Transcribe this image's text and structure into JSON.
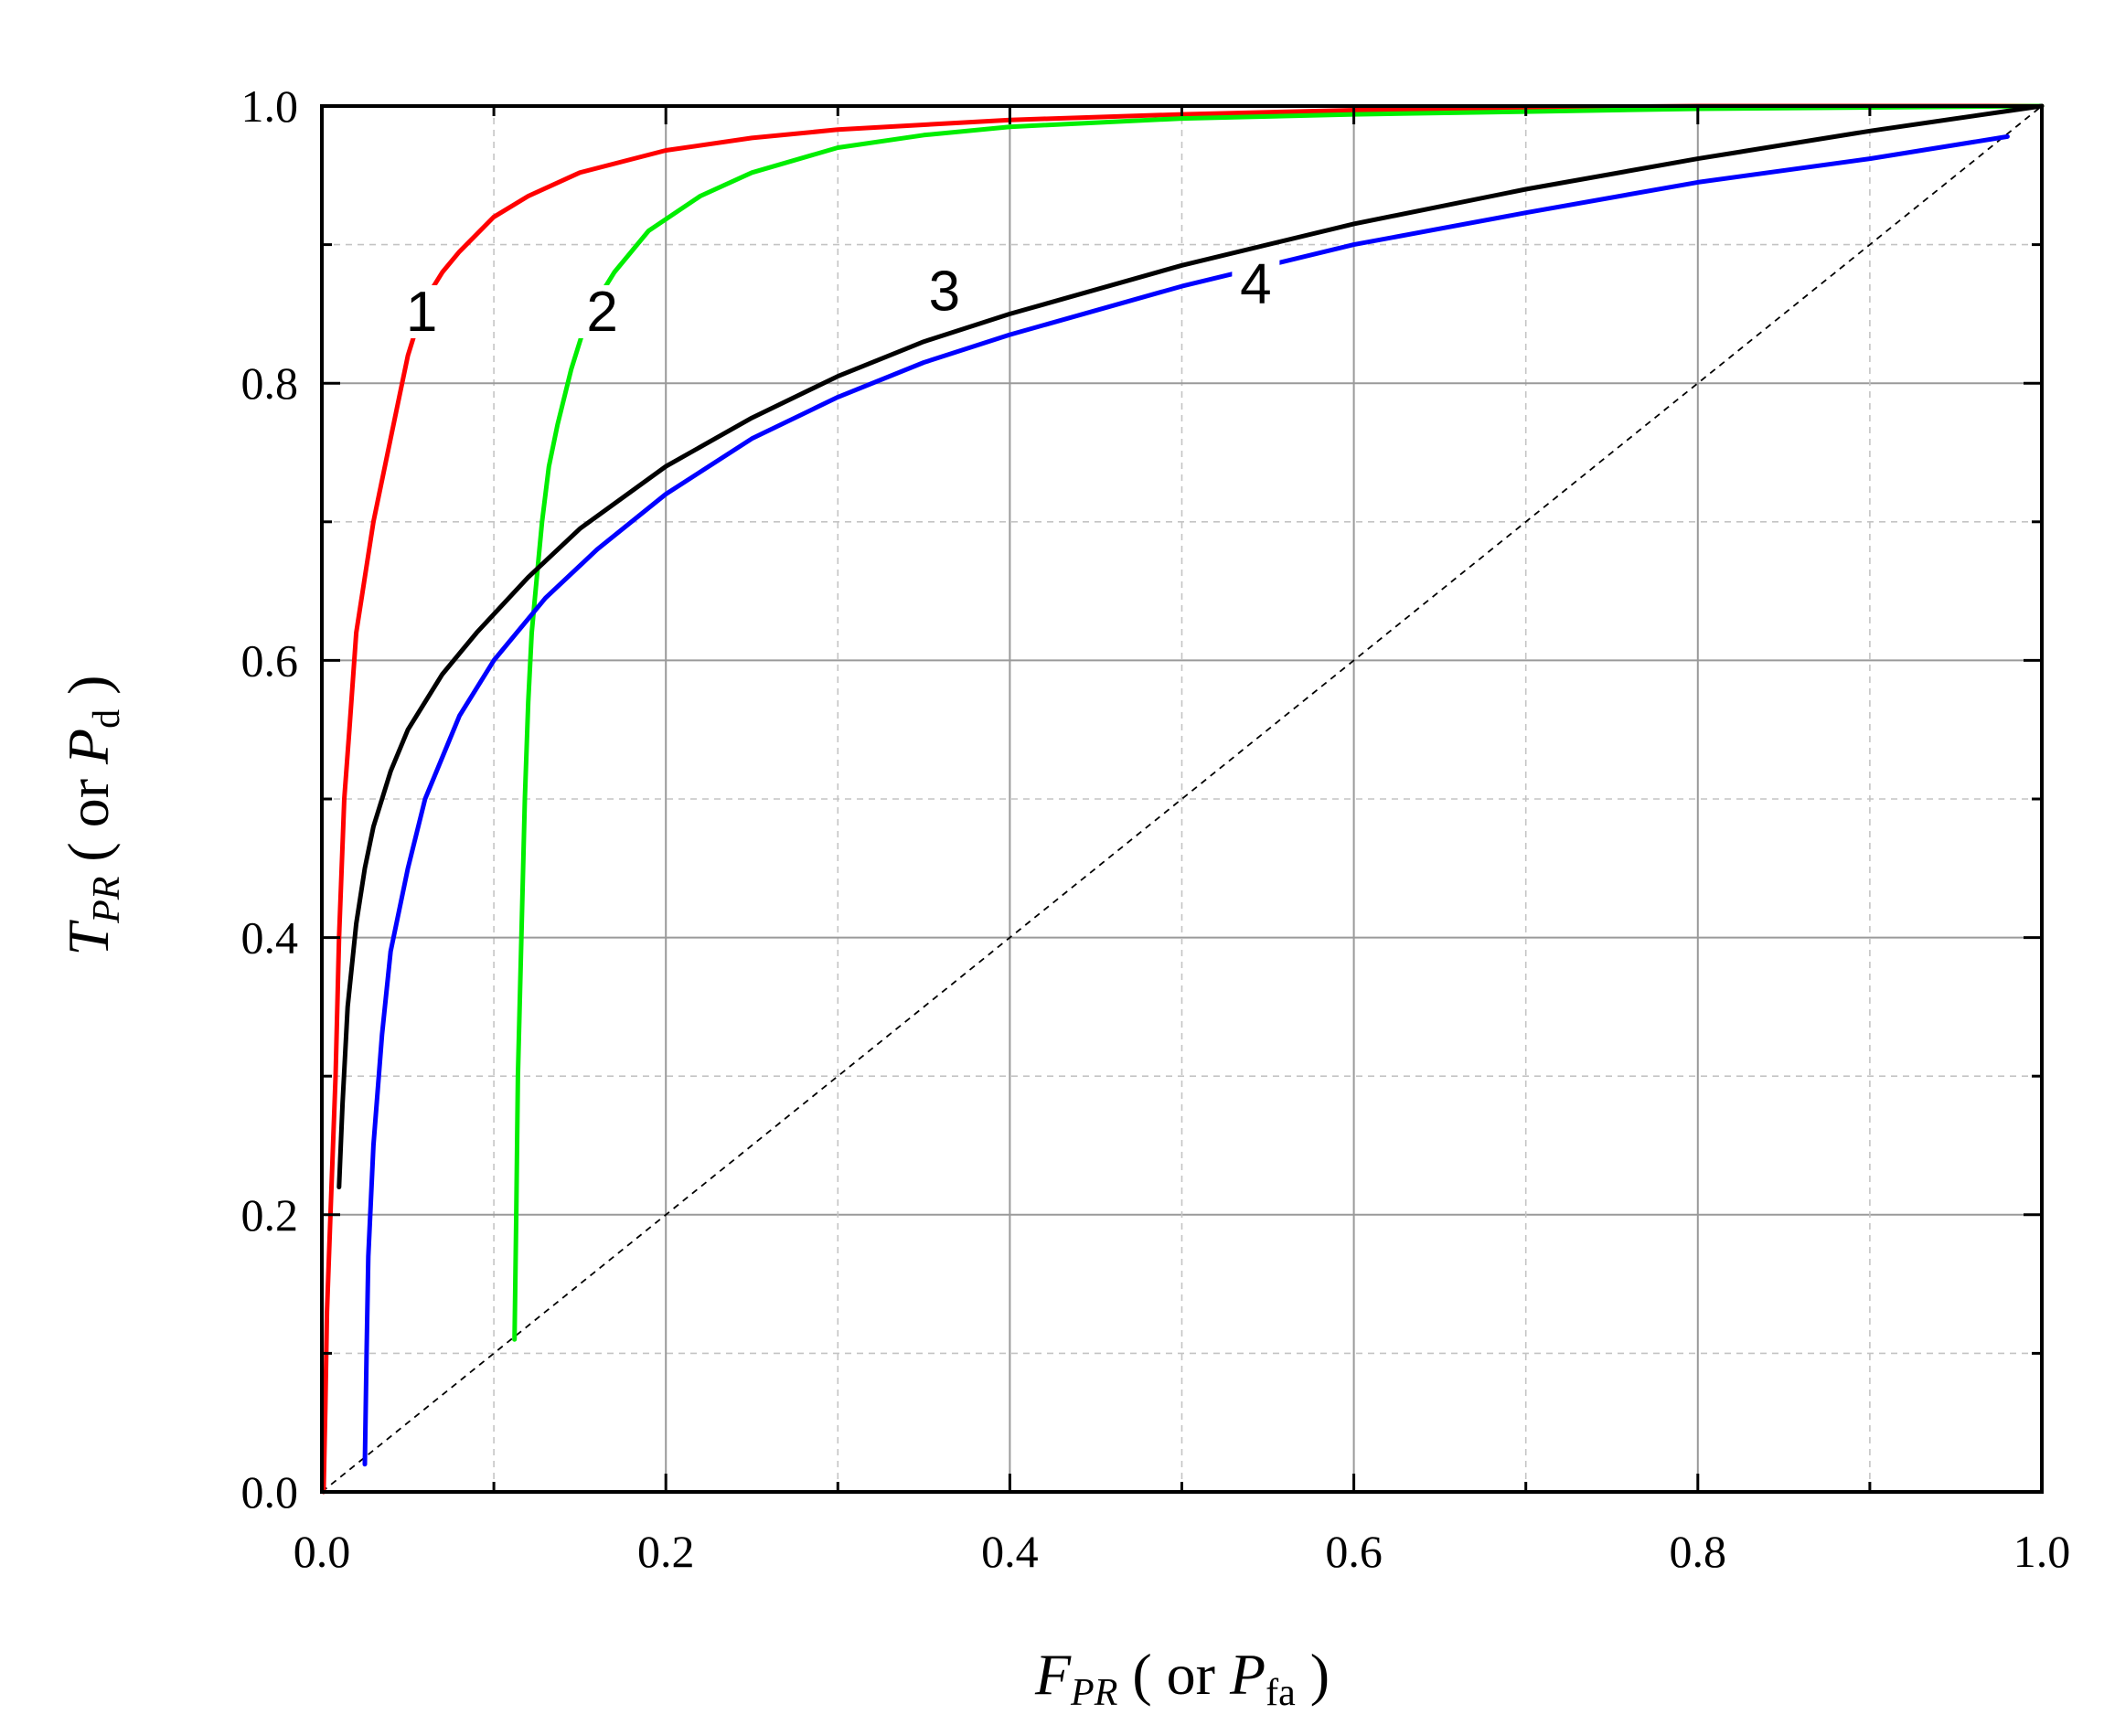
{
  "chart_data": {
    "type": "line",
    "title": "",
    "xlabel": {
      "main": "F",
      "sub": "PR",
      "paren_open": " ( or ",
      "paren_main": "P",
      "paren_sub": "fa",
      "paren_close": " )"
    },
    "ylabel": {
      "main": "T",
      "sub": "PR",
      "paren_open": " ( or ",
      "paren_main": "P",
      "paren_sub": "d",
      "paren_close": " )"
    },
    "xlim": [
      0,
      1
    ],
    "ylim": [
      0,
      1
    ],
    "x_ticks": [
      "0.0",
      "0.2",
      "0.4",
      "0.6",
      "0.8",
      "1.0"
    ],
    "y_ticks": [
      "0.0",
      "0.2",
      "0.4",
      "0.6",
      "0.8",
      "1.0"
    ],
    "grid": true,
    "reference_line": {
      "style": "dashed",
      "color": "#000000",
      "points": [
        [
          0,
          0
        ],
        [
          1,
          1
        ]
      ]
    },
    "series": [
      {
        "label": "1",
        "color": "#ff0000",
        "label_at": [
          0.058,
          0.843
        ],
        "points": [
          [
            0.001,
            0.0
          ],
          [
            0.002,
            0.06
          ],
          [
            0.003,
            0.13
          ],
          [
            0.005,
            0.2
          ],
          [
            0.008,
            0.3
          ],
          [
            0.01,
            0.4
          ],
          [
            0.013,
            0.5
          ],
          [
            0.016,
            0.55
          ],
          [
            0.02,
            0.62
          ],
          [
            0.025,
            0.66
          ],
          [
            0.03,
            0.7
          ],
          [
            0.035,
            0.73
          ],
          [
            0.04,
            0.76
          ],
          [
            0.045,
            0.79
          ],
          [
            0.05,
            0.82
          ],
          [
            0.06,
            0.86
          ],
          [
            0.07,
            0.88
          ],
          [
            0.08,
            0.895
          ],
          [
            0.1,
            0.92
          ],
          [
            0.12,
            0.935
          ],
          [
            0.15,
            0.952
          ],
          [
            0.2,
            0.968
          ],
          [
            0.25,
            0.977
          ],
          [
            0.3,
            0.983
          ],
          [
            0.4,
            0.99
          ],
          [
            0.5,
            0.994
          ],
          [
            0.6,
            0.997
          ],
          [
            0.7,
            0.999
          ],
          [
            0.8,
            1.0
          ],
          [
            0.9,
            1.0
          ],
          [
            1.0,
            1.0
          ]
        ]
      },
      {
        "label": "2",
        "color": "#00ee00",
        "label_at": [
          0.163,
          0.843
        ],
        "points": [
          [
            0.112,
            0.11
          ],
          [
            0.113,
            0.2
          ],
          [
            0.114,
            0.3
          ],
          [
            0.116,
            0.4
          ],
          [
            0.118,
            0.5
          ],
          [
            0.12,
            0.57
          ],
          [
            0.122,
            0.62
          ],
          [
            0.125,
            0.66
          ],
          [
            0.128,
            0.7
          ],
          [
            0.132,
            0.74
          ],
          [
            0.137,
            0.77
          ],
          [
            0.145,
            0.81
          ],
          [
            0.155,
            0.85
          ],
          [
            0.17,
            0.88
          ],
          [
            0.19,
            0.91
          ],
          [
            0.22,
            0.935
          ],
          [
            0.25,
            0.952
          ],
          [
            0.3,
            0.97
          ],
          [
            0.35,
            0.979
          ],
          [
            0.4,
            0.985
          ],
          [
            0.5,
            0.991
          ],
          [
            0.6,
            0.994
          ],
          [
            0.7,
            0.996
          ],
          [
            0.8,
            0.998
          ],
          [
            0.9,
            0.999
          ],
          [
            1.0,
            1.0
          ]
        ]
      },
      {
        "label": "3",
        "color": "#000000",
        "label_at": [
          0.362,
          0.858
        ],
        "points": [
          [
            0.01,
            0.22
          ],
          [
            0.012,
            0.28
          ],
          [
            0.015,
            0.35
          ],
          [
            0.02,
            0.41
          ],
          [
            0.025,
            0.45
          ],
          [
            0.03,
            0.48
          ],
          [
            0.04,
            0.52
          ],
          [
            0.05,
            0.55
          ],
          [
            0.07,
            0.59
          ],
          [
            0.09,
            0.62
          ],
          [
            0.12,
            0.66
          ],
          [
            0.15,
            0.695
          ],
          [
            0.2,
            0.74
          ],
          [
            0.25,
            0.775
          ],
          [
            0.3,
            0.805
          ],
          [
            0.35,
            0.83
          ],
          [
            0.4,
            0.85
          ],
          [
            0.5,
            0.885
          ],
          [
            0.6,
            0.915
          ],
          [
            0.7,
            0.94
          ],
          [
            0.8,
            0.962
          ],
          [
            0.9,
            0.982
          ],
          [
            1.0,
            1.0
          ]
        ]
      },
      {
        "label": "4",
        "color": "#0000ff",
        "label_at": [
          0.543,
          0.863
        ],
        "points": [
          [
            0.025,
            0.02
          ],
          [
            0.026,
            0.1
          ],
          [
            0.027,
            0.17
          ],
          [
            0.03,
            0.25
          ],
          [
            0.035,
            0.33
          ],
          [
            0.04,
            0.39
          ],
          [
            0.05,
            0.45
          ],
          [
            0.06,
            0.5
          ],
          [
            0.08,
            0.56
          ],
          [
            0.1,
            0.6
          ],
          [
            0.13,
            0.645
          ],
          [
            0.16,
            0.68
          ],
          [
            0.2,
            0.72
          ],
          [
            0.25,
            0.76
          ],
          [
            0.3,
            0.79
          ],
          [
            0.35,
            0.815
          ],
          [
            0.4,
            0.835
          ],
          [
            0.5,
            0.87
          ],
          [
            0.6,
            0.9
          ],
          [
            0.7,
            0.923
          ],
          [
            0.8,
            0.945
          ],
          [
            0.9,
            0.962
          ],
          [
            0.98,
            0.978
          ]
        ]
      }
    ]
  }
}
